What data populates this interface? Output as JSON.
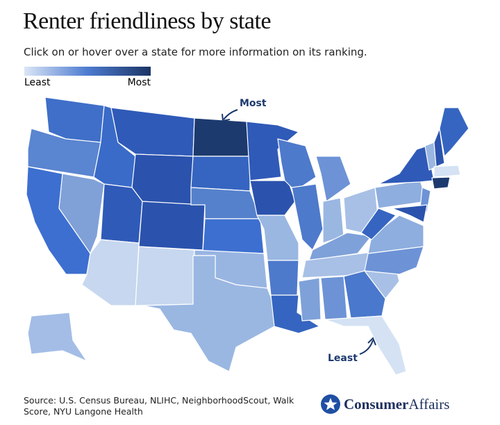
{
  "header": {
    "title": "Renter friendliness by state",
    "subtitle": "Click on or hover over a state for more information on its ranking."
  },
  "legend": {
    "low": "Least",
    "high": "Most"
  },
  "annotations": {
    "most": "Most",
    "least": "Least"
  },
  "footer": {
    "source": "Source: U.S. Census Bureau, NLIHC, NeighborhoodScout, Walk Score, NYU Langone Health"
  },
  "logo": {
    "brand_bold": "Consumer",
    "brand_light": "Affairs"
  }
}
